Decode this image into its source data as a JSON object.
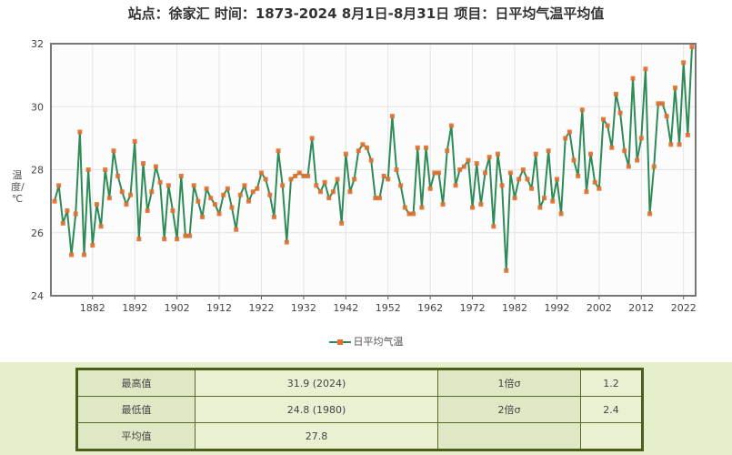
{
  "title": "站点：徐家汇 时间：1873-2024  8月1日-8月31日 项目：日平均气温平均值",
  "chart_data": {
    "type": "line",
    "title": "站点：徐家汇 时间：1873-2024  8月1日-8月31日 项目：日平均气温平均值",
    "ylabel": "温度/℃",
    "xlabel": "",
    "ylim": [
      24,
      32
    ],
    "yticks": [
      "24",
      "26",
      "28",
      "30",
      "32"
    ],
    "xlim": [
      1873,
      2024
    ],
    "xticks": [
      "1882",
      "1892",
      "1902",
      "1912",
      "1922",
      "1932",
      "1942",
      "1952",
      "1962",
      "1972",
      "1982",
      "1992",
      "2002",
      "2012",
      "2022"
    ],
    "grid": true,
    "legend_position": "bottom",
    "line_color": "#2e8b57",
    "marker_color": "#e07030",
    "series": [
      {
        "name": "日平均气温",
        "x_start": 1873,
        "values": [
          27.0,
          27.5,
          26.3,
          26.7,
          25.3,
          26.6,
          29.2,
          25.3,
          28.0,
          25.6,
          26.9,
          26.2,
          28.0,
          27.1,
          28.6,
          27.8,
          27.3,
          26.9,
          27.2,
          28.9,
          25.8,
          28.2,
          26.7,
          27.3,
          28.1,
          27.6,
          25.8,
          27.5,
          26.7,
          25.8,
          27.8,
          25.9,
          25.9,
          27.5,
          27.0,
          26.5,
          27.4,
          27.1,
          26.9,
          26.6,
          27.2,
          27.4,
          26.8,
          26.1,
          27.2,
          27.5,
          27.0,
          27.3,
          27.4,
          27.9,
          27.7,
          27.2,
          26.5,
          28.6,
          27.5,
          25.7,
          27.7,
          27.8,
          27.9,
          27.8,
          27.8,
          29.0,
          27.5,
          27.3,
          27.6,
          27.1,
          27.3,
          27.7,
          26.3,
          28.5,
          27.3,
          27.7,
          28.6,
          28.8,
          28.7,
          28.3,
          27.1,
          27.1,
          27.8,
          27.7,
          29.7,
          28.0,
          27.5,
          26.8,
          26.6,
          26.6,
          28.7,
          26.8,
          28.7,
          27.4,
          27.9,
          27.9,
          26.9,
          28.6,
          29.4,
          27.5,
          28.0,
          28.1,
          28.3,
          26.8,
          28.2,
          26.9,
          27.9,
          28.4,
          26.2,
          28.5,
          27.5,
          24.8,
          27.9,
          27.1,
          27.7,
          28.0,
          27.7,
          27.4,
          28.5,
          26.8,
          27.1,
          28.6,
          27.0,
          27.7,
          26.6,
          29.0,
          29.2,
          28.3,
          27.8,
          29.9,
          27.3,
          28.5,
          27.6,
          27.4,
          29.6,
          29.4,
          28.7,
          30.4,
          29.8,
          28.6,
          28.1,
          30.9,
          28.3,
          29.0,
          31.2,
          26.6,
          28.1,
          30.1,
          30.1,
          29.7,
          28.8,
          30.6,
          28.8,
          31.4,
          29.1,
          31.9
        ]
      }
    ]
  },
  "stats_table": {
    "rows": [
      [
        "最高值",
        "31.9 (2024)",
        "1倍σ",
        "1.2"
      ],
      [
        "最低值",
        "24.8 (1980)",
        "2倍σ",
        "2.4"
      ],
      [
        "平均值",
        "27.8",
        "",
        ""
      ]
    ]
  }
}
